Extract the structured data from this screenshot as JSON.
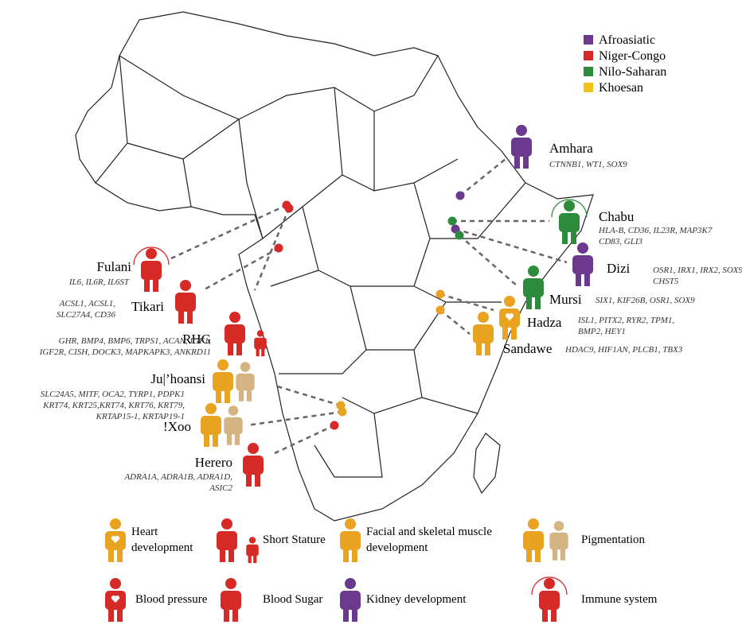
{
  "legend": [
    {
      "label": "Afroasiatic",
      "color": "#6b3a8e"
    },
    {
      "label": "Niger-Congo",
      "color": "#d62a27"
    },
    {
      "label": "Nilo-Saharan",
      "color": "#2c8c3c"
    },
    {
      "label": "Khoesan",
      "color": "#f2c21b"
    }
  ],
  "populations": [
    {
      "name": "Amhara",
      "color": "#6b3a8e",
      "genes": [
        "CTNNB1, WT1, SOX9"
      ]
    },
    {
      "name": "Chabu",
      "color": "#2c8c3c",
      "genes": [
        "HLA-B, CD36, IL23R, MAP3K7",
        "CD83, GLI3"
      ]
    },
    {
      "name": "Dizi",
      "color": "#6b3a8e",
      "genes": [
        "OSR1, IRX1, IRX2, SOX9,",
        "CHST5"
      ]
    },
    {
      "name": "Mursi",
      "color": "#2c8c3c",
      "genes": [
        "SIX1, KIF26B, OSR1, SOX9"
      ]
    },
    {
      "name": "Hadza",
      "color": "#e8a321",
      "genes": [
        "ISL1, PITX2, RYR2, TPM1,",
        "BMP2, HEY1"
      ]
    },
    {
      "name": "Sandawe",
      "color": "#e8a321",
      "genes": [
        "HDAC9, HIF1AN, PLCB1, TBX3"
      ]
    },
    {
      "name": "Fulani",
      "color": "#d62a27",
      "genes": [
        "IL6, IL6R, IL6ST"
      ]
    },
    {
      "name": "Tikari",
      "color": "#d62a27",
      "genes": [
        "ACSL1, ACSL1,",
        "SLC27A4, CD36"
      ]
    },
    {
      "name": "RHG",
      "color": "#d62a27",
      "genes": [
        "GHR, BMP4, BMP6, TRPS1, ACAN, IGF1,",
        "IGF2R, CISH, DOCK3, MAPKAPK3, ANKRD11"
      ]
    },
    {
      "name": "Ju|’hoansi",
      "color": "#e8a321",
      "genes": [
        "SLC24A5, MITF, OCA2, TYRP1, PDPK1",
        "KRT74, KRT25,KRT74, KRT76, KRT79,",
        "KRTAP15-1, KRTAP19-1"
      ]
    },
    {
      "name": "!Xoo",
      "color": "#e8a321",
      "genes": []
    },
    {
      "name": "Herero",
      "color": "#d62a27",
      "genes": [
        "ADRA1A, ADRA1B, ADRA1D,",
        "ASIC2"
      ]
    }
  ],
  "key": [
    {
      "label": [
        "Heart",
        "development"
      ],
      "color": "#e8a321"
    },
    {
      "label": [
        "Short Stature"
      ],
      "color": "#d62a27"
    },
    {
      "label": [
        "Facial and skeletal muscle",
        "development"
      ],
      "color": "#e8a321"
    },
    {
      "label": [
        "Pigmentation"
      ],
      "color": "#e8a321"
    },
    {
      "label": [
        "Blood pressure"
      ],
      "color": "#d62a27"
    },
    {
      "label": [
        "Blood Sugar"
      ],
      "color": "#d62a27"
    },
    {
      "label": [
        "Kidney development"
      ],
      "color": "#6b3a8e"
    },
    {
      "label": [
        "Immune system"
      ],
      "color": "#d62a27"
    }
  ]
}
